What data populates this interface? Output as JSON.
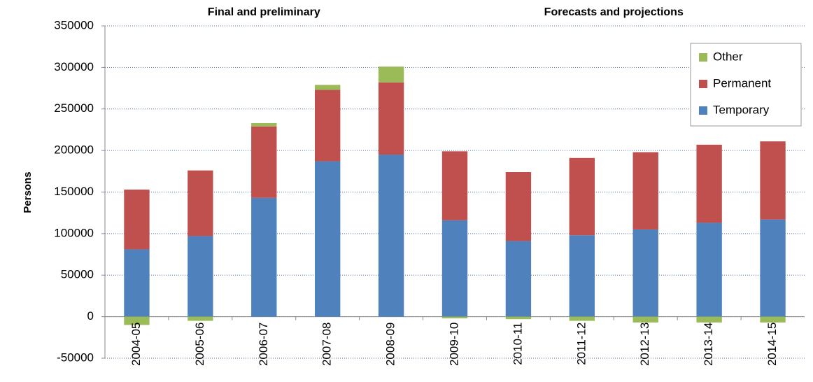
{
  "chart_data": {
    "type": "bar",
    "stacked": true,
    "headers": [
      "Final and preliminary",
      "Forecasts and projections"
    ],
    "y_label": "Persons",
    "categories": [
      "2004-05",
      "2005-06",
      "2006-07",
      "2007-08",
      "2008-09",
      "2009-10",
      "2010-11",
      "2011-12",
      "2012-13",
      "2013-14",
      "2014-15"
    ],
    "series": [
      {
        "name": "Temporary",
        "color": "#4f81bd",
        "values": [
          81000,
          97000,
          143000,
          187000,
          195000,
          116000,
          91000,
          98000,
          105000,
          113000,
          117000
        ]
      },
      {
        "name": "Permanent",
        "color": "#c0504d",
        "values": [
          72000,
          79000,
          86000,
          86000,
          87000,
          83000,
          83000,
          93000,
          93000,
          94000,
          94000
        ]
      },
      {
        "name": "Other",
        "color": "#9bbb59",
        "values": [
          -10000,
          -5000,
          4000,
          6000,
          19000,
          -2000,
          -3000,
          -5000,
          -7000,
          -7000,
          -7000
        ]
      }
    ],
    "ylim": [
      -50000,
      350000
    ],
    "yticks": [
      -50000,
      0,
      50000,
      100000,
      150000,
      200000,
      250000,
      300000,
      350000
    ],
    "grid": true,
    "legend": "upper right"
  }
}
